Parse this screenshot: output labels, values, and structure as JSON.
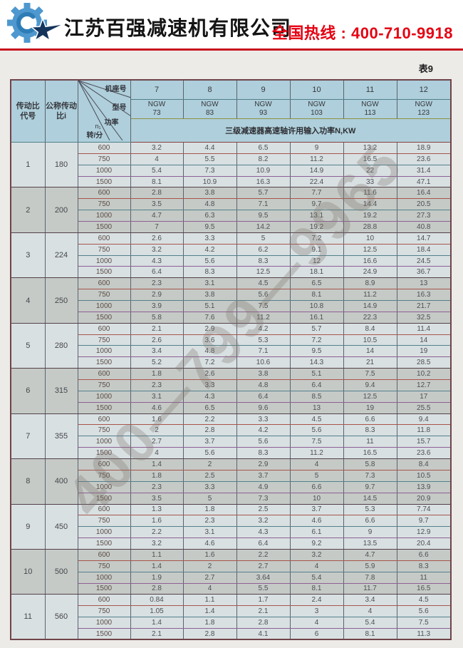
{
  "header": {
    "company_name": "江苏百强减速机有限公司",
    "hotline_label": "全国热线 : ",
    "hotline_number": "400-710-9918"
  },
  "watermark": "400—799—9965",
  "colors": {
    "accent_red": "#c8141e",
    "hotline_red": "#e50012",
    "header_cell_bg": "#aecfdb",
    "group_light_bg": "#d8e0e2",
    "group_dark_bg": "#c5cac6",
    "logo_gear_blue": "#4e98cf",
    "logo_star_navy": "#14345c"
  },
  "table": {
    "label": "表9",
    "col_ratio_code": [
      "传动比",
      "代号"
    ],
    "col_nominal_ratio": [
      "公称传动",
      "比i"
    ],
    "corner": {
      "frame_no": "机座号",
      "model": "型号",
      "power": "功率",
      "n1": "n₁",
      "rpm": "转/分"
    },
    "frame_numbers": [
      "7",
      "8",
      "9",
      "10",
      "11",
      "12"
    ],
    "model_prefix": "NGW",
    "model_numbers": [
      "73",
      "83",
      "93",
      "103",
      "113",
      "123"
    ],
    "power_header": "三级减速器高速轴许用输入功率N,KW",
    "speeds": [
      "600",
      "750",
      "1000",
      "1500"
    ],
    "groups": [
      {
        "code": "1",
        "ratio": "180",
        "rows": [
          [
            "3.2",
            "4.4",
            "6.5",
            "9",
            "13.2",
            "18.9"
          ],
          [
            "4",
            "5.5",
            "8.2",
            "11.2",
            "16.5",
            "23.6"
          ],
          [
            "5.4",
            "7.3",
            "10.9",
            "14.9",
            "22",
            "31.4"
          ],
          [
            "8.1",
            "10.9",
            "16.3",
            "22.4",
            "33",
            "47.1"
          ]
        ]
      },
      {
        "code": "2",
        "ratio": "200",
        "rows": [
          [
            "2.8",
            "3.8",
            "5.7",
            "7.7",
            "11.6",
            "16.4"
          ],
          [
            "3.5",
            "4.8",
            "7.1",
            "9.7",
            "14.4",
            "20.5"
          ],
          [
            "4.7",
            "6.3",
            "9.5",
            "13.1",
            "19.2",
            "27.3"
          ],
          [
            "7",
            "9.5",
            "14.2",
            "19.2",
            "28.8",
            "40.8"
          ]
        ]
      },
      {
        "code": "3",
        "ratio": "224",
        "rows": [
          [
            "2.6",
            "3.3",
            "5",
            "7.2",
            "10",
            "14.7"
          ],
          [
            "3.2",
            "4.2",
            "6.2",
            "9.1",
            "12.5",
            "18.4"
          ],
          [
            "4.3",
            "5.6",
            "8.3",
            "12",
            "16.6",
            "24.5"
          ],
          [
            "6.4",
            "8.3",
            "12.5",
            "18.1",
            "24.9",
            "36.7"
          ]
        ]
      },
      {
        "code": "4",
        "ratio": "250",
        "rows": [
          [
            "2.3",
            "3.1",
            "4.5",
            "6.5",
            "8.9",
            "13"
          ],
          [
            "2.9",
            "3.8",
            "5.6",
            "8.1",
            "11.2",
            "16.3"
          ],
          [
            "3.9",
            "5.1",
            "7.5",
            "10.8",
            "14.9",
            "21.7"
          ],
          [
            "5.8",
            "7.6",
            "11.2",
            "16.1",
            "22.3",
            "32.5"
          ]
        ]
      },
      {
        "code": "5",
        "ratio": "280",
        "rows": [
          [
            "2.1",
            "2.9",
            "4.2",
            "5.7",
            "8.4",
            "11.4"
          ],
          [
            "2.6",
            "3.6",
            "5.3",
            "7.2",
            "10.5",
            "14"
          ],
          [
            "3.4",
            "4.8",
            "7.1",
            "9.5",
            "14",
            "19"
          ],
          [
            "5.2",
            "7.2",
            "10.6",
            "14.3",
            "21",
            "28.5"
          ]
        ]
      },
      {
        "code": "6",
        "ratio": "315",
        "rows": [
          [
            "1.8",
            "2.6",
            "3.8",
            "5.1",
            "7.5",
            "10.2"
          ],
          [
            "2.3",
            "3.3",
            "4.8",
            "6.4",
            "9.4",
            "12.7"
          ],
          [
            "3.1",
            "4.3",
            "6.4",
            "8.5",
            "12.5",
            "17"
          ],
          [
            "4.6",
            "6.5",
            "9.6",
            "13",
            "19",
            "25.5"
          ]
        ]
      },
      {
        "code": "7",
        "ratio": "355",
        "rows": [
          [
            "1.6",
            "2.2",
            "3.3",
            "4.5",
            "6.6",
            "9.4"
          ],
          [
            "2",
            "2.8",
            "4.2",
            "5.6",
            "8.3",
            "11.8"
          ],
          [
            "2.7",
            "3.7",
            "5.6",
            "7.5",
            "11",
            "15.7"
          ],
          [
            "4",
            "5.6",
            "8.3",
            "11.2",
            "16.5",
            "23.6"
          ]
        ]
      },
      {
        "code": "8",
        "ratio": "400",
        "rows": [
          [
            "1.4",
            "2",
            "2.9",
            "4",
            "5.8",
            "8.4"
          ],
          [
            "1.8",
            "2.5",
            "3.7",
            "5",
            "7.3",
            "10.5"
          ],
          [
            "2.3",
            "3.3",
            "4.9",
            "6.6",
            "9.7",
            "13.9"
          ],
          [
            "3.5",
            "5",
            "7.3",
            "10",
            "14.5",
            "20.9"
          ]
        ]
      },
      {
        "code": "9",
        "ratio": "450",
        "rows": [
          [
            "1.3",
            "1.8",
            "2.5",
            "3.7",
            "5.3",
            "7.74"
          ],
          [
            "1.6",
            "2.3",
            "3.2",
            "4.6",
            "6.6",
            "9.7"
          ],
          [
            "2.2",
            "3.1",
            "4.3",
            "6.1",
            "9",
            "12.9"
          ],
          [
            "3.2",
            "4.6",
            "6.4",
            "9.2",
            "13.5",
            "20.4"
          ]
        ]
      },
      {
        "code": "10",
        "ratio": "500",
        "rows": [
          [
            "1.1",
            "1.6",
            "2.2",
            "3.2",
            "4.7",
            "6.6"
          ],
          [
            "1.4",
            "2",
            "2.7",
            "4",
            "5.9",
            "8.3"
          ],
          [
            "1.9",
            "2.7",
            "3.64",
            "5.4",
            "7.8",
            "11"
          ],
          [
            "2.8",
            "4",
            "5.5",
            "8.1",
            "11.7",
            "16.5"
          ]
        ]
      },
      {
        "code": "11",
        "ratio": "560",
        "rows": [
          [
            "0.84",
            "1.1",
            "1.7",
            "2.4",
            "3.4",
            "4.5"
          ],
          [
            "1.05",
            "1.4",
            "2.1",
            "3",
            "4",
            "5.6"
          ],
          [
            "1.4",
            "1.8",
            "2.8",
            "4",
            "5.4",
            "7.5"
          ],
          [
            "2.1",
            "2.8",
            "4.1",
            "6",
            "8.1",
            "11.3"
          ]
        ]
      }
    ]
  }
}
